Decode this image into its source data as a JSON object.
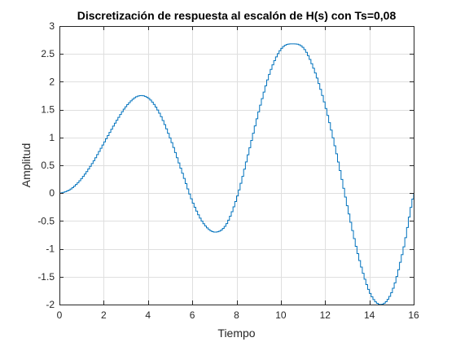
{
  "chart_data": {
    "type": "line",
    "style": "stairs",
    "title": "Discretización de respuesta al escalón de H(s) con Ts=0,08",
    "xlabel": "Tiempo",
    "ylabel": "Amplitud",
    "xlim": [
      0,
      16
    ],
    "ylim": [
      -2,
      3
    ],
    "x_ticks": [
      0,
      2,
      4,
      6,
      8,
      10,
      12,
      14,
      16
    ],
    "y_ticks": [
      -2,
      -1.5,
      -1,
      -0.5,
      0,
      0.5,
      1,
      1.5,
      2,
      2.5,
      3
    ],
    "x_tick_labels": [
      "0",
      "2",
      "4",
      "6",
      "8",
      "10",
      "12",
      "14",
      "16"
    ],
    "y_tick_labels": [
      "-2",
      "-1.5",
      "-1",
      "-0.5",
      "0",
      "0.5",
      "1",
      "1.5",
      "2",
      "2.5",
      "3"
    ],
    "grid": true,
    "series": [
      {
        "color": "#0072BD",
        "x": [
          0,
          0.5,
          1,
          1.5,
          2,
          2.5,
          3,
          3.5,
          4,
          4.5,
          5,
          5.5,
          6,
          6.5,
          7,
          7.5,
          8,
          8.5,
          9,
          9.5,
          10,
          10.5,
          11,
          11.5,
          12,
          12.5,
          13,
          13.5,
          14,
          14.5,
          15,
          15.5,
          16
        ],
        "y": [
          0,
          0.08,
          0.28,
          0.57,
          0.92,
          1.27,
          1.57,
          1.74,
          1.7,
          1.42,
          0.95,
          0.38,
          -0.18,
          -0.56,
          -0.7,
          -0.56,
          -0.05,
          0.72,
          1.52,
          2.2,
          2.6,
          2.68,
          2.6,
          2.18,
          1.52,
          0.67,
          -0.3,
          -1.18,
          -1.8,
          -2.0,
          -1.75,
          -1.0,
          0.0
        ]
      }
    ]
  }
}
